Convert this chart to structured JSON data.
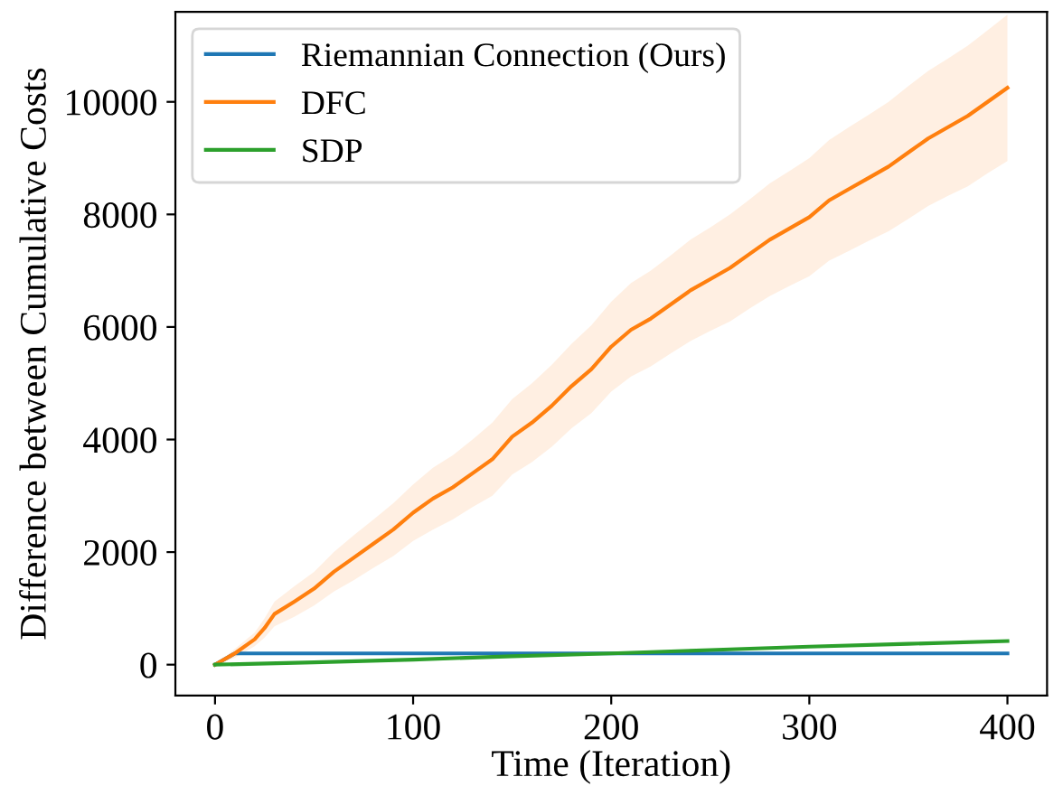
{
  "chart_data": {
    "type": "line",
    "xlabel": "Time (Iteration)",
    "ylabel": "Difference between Cumulative Costs",
    "xlim": [
      -20,
      420
    ],
    "ylim": [
      -550,
      11600
    ],
    "xticks": [
      0,
      100,
      200,
      300,
      400
    ],
    "yticks": [
      0,
      2000,
      4000,
      6000,
      8000,
      10000
    ],
    "grid": false,
    "legend": "top left",
    "marker": "none",
    "line_style": "solid",
    "series": [
      {
        "name": "Riemannian Connection (Ours)",
        "color": "#1f77b4",
        "x": [
          0,
          10,
          50,
          100,
          150,
          200,
          250,
          300,
          350,
          400
        ],
        "values": [
          0,
          200,
          200,
          200,
          200,
          200,
          200,
          200,
          200,
          200
        ]
      },
      {
        "name": "DFC",
        "color": "#ff7f0e",
        "x": [
          0,
          10,
          20,
          25,
          30,
          40,
          50,
          60,
          70,
          80,
          90,
          100,
          110,
          120,
          130,
          140,
          150,
          160,
          170,
          180,
          190,
          200,
          210,
          220,
          230,
          240,
          250,
          260,
          270,
          280,
          290,
          300,
          310,
          320,
          330,
          340,
          350,
          360,
          370,
          380,
          390,
          400
        ],
        "values": [
          0,
          200,
          450,
          650,
          900,
          1120,
          1350,
          1650,
          1900,
          2150,
          2400,
          2700,
          2950,
          3150,
          3400,
          3650,
          4050,
          4300,
          4600,
          4950,
          5250,
          5650,
          5950,
          6150,
          6400,
          6650,
          6850,
          7050,
          7300,
          7550,
          7750,
          7950,
          8250,
          8450,
          8650,
          8850,
          9100,
          9350,
          9550,
          9750,
          10000,
          10250
        ],
        "lower": [
          0,
          120,
          330,
          480,
          680,
          850,
          1050,
          1300,
          1500,
          1720,
          1930,
          2200,
          2400,
          2580,
          2800,
          3000,
          3380,
          3600,
          3870,
          4200,
          4470,
          4850,
          5120,
          5300,
          5530,
          5750,
          5930,
          6100,
          6330,
          6550,
          6730,
          6900,
          7180,
          7350,
          7530,
          7700,
          7920,
          8150,
          8330,
          8500,
          8730,
          8950
        ],
        "upper": [
          0,
          280,
          570,
          820,
          1120,
          1390,
          1650,
          2000,
          2300,
          2580,
          2870,
          3200,
          3500,
          3720,
          4000,
          4300,
          4720,
          5000,
          5330,
          5700,
          6030,
          6450,
          6780,
          7000,
          7270,
          7550,
          7770,
          8000,
          8270,
          8550,
          8770,
          9000,
          9320,
          9550,
          9770,
          10000,
          10280,
          10550,
          10770,
          11000,
          11270,
          11550
        ]
      },
      {
        "name": "SDP",
        "color": "#2ca02c",
        "x": [
          0,
          50,
          100,
          150,
          200,
          250,
          300,
          350,
          400
        ],
        "values": [
          0,
          40,
          90,
          150,
          200,
          260,
          320,
          370,
          420
        ]
      }
    ]
  }
}
